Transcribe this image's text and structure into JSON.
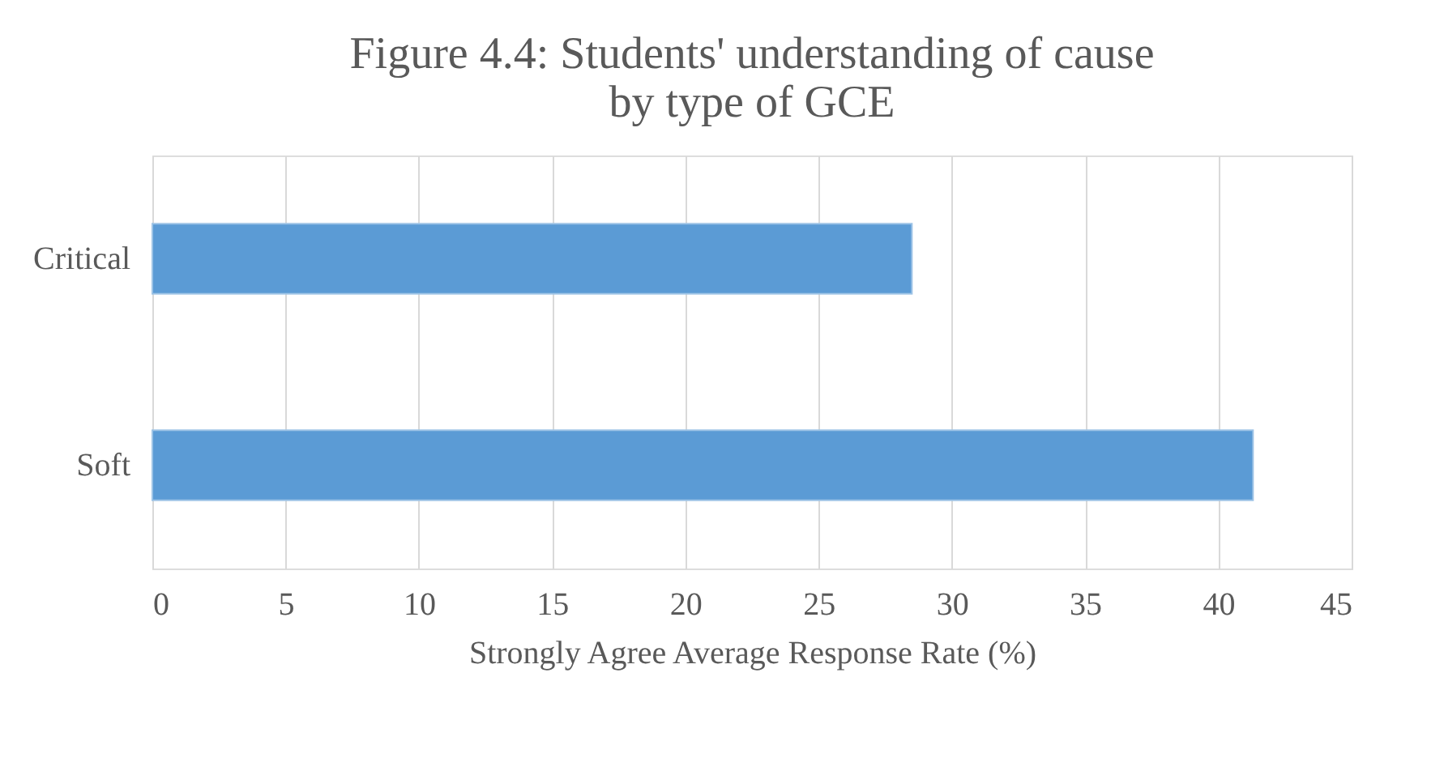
{
  "chart_data": {
    "type": "bar",
    "orientation": "horizontal",
    "title": "Figure 4.4: Students' understanding of cause by type of GCE",
    "xlabel": "Strongly Agree Average Response Rate (%)",
    "categories": [
      "Critical",
      "Soft"
    ],
    "series": [
      {
        "color": "#5b9bd5",
        "values": [
          28.5,
          41.3
        ]
      }
    ],
    "xlim": [
      0,
      45
    ],
    "xticks": [
      0,
      5,
      10,
      15,
      20,
      25,
      30,
      35,
      40,
      45
    ],
    "grid": "x",
    "legend": false
  }
}
